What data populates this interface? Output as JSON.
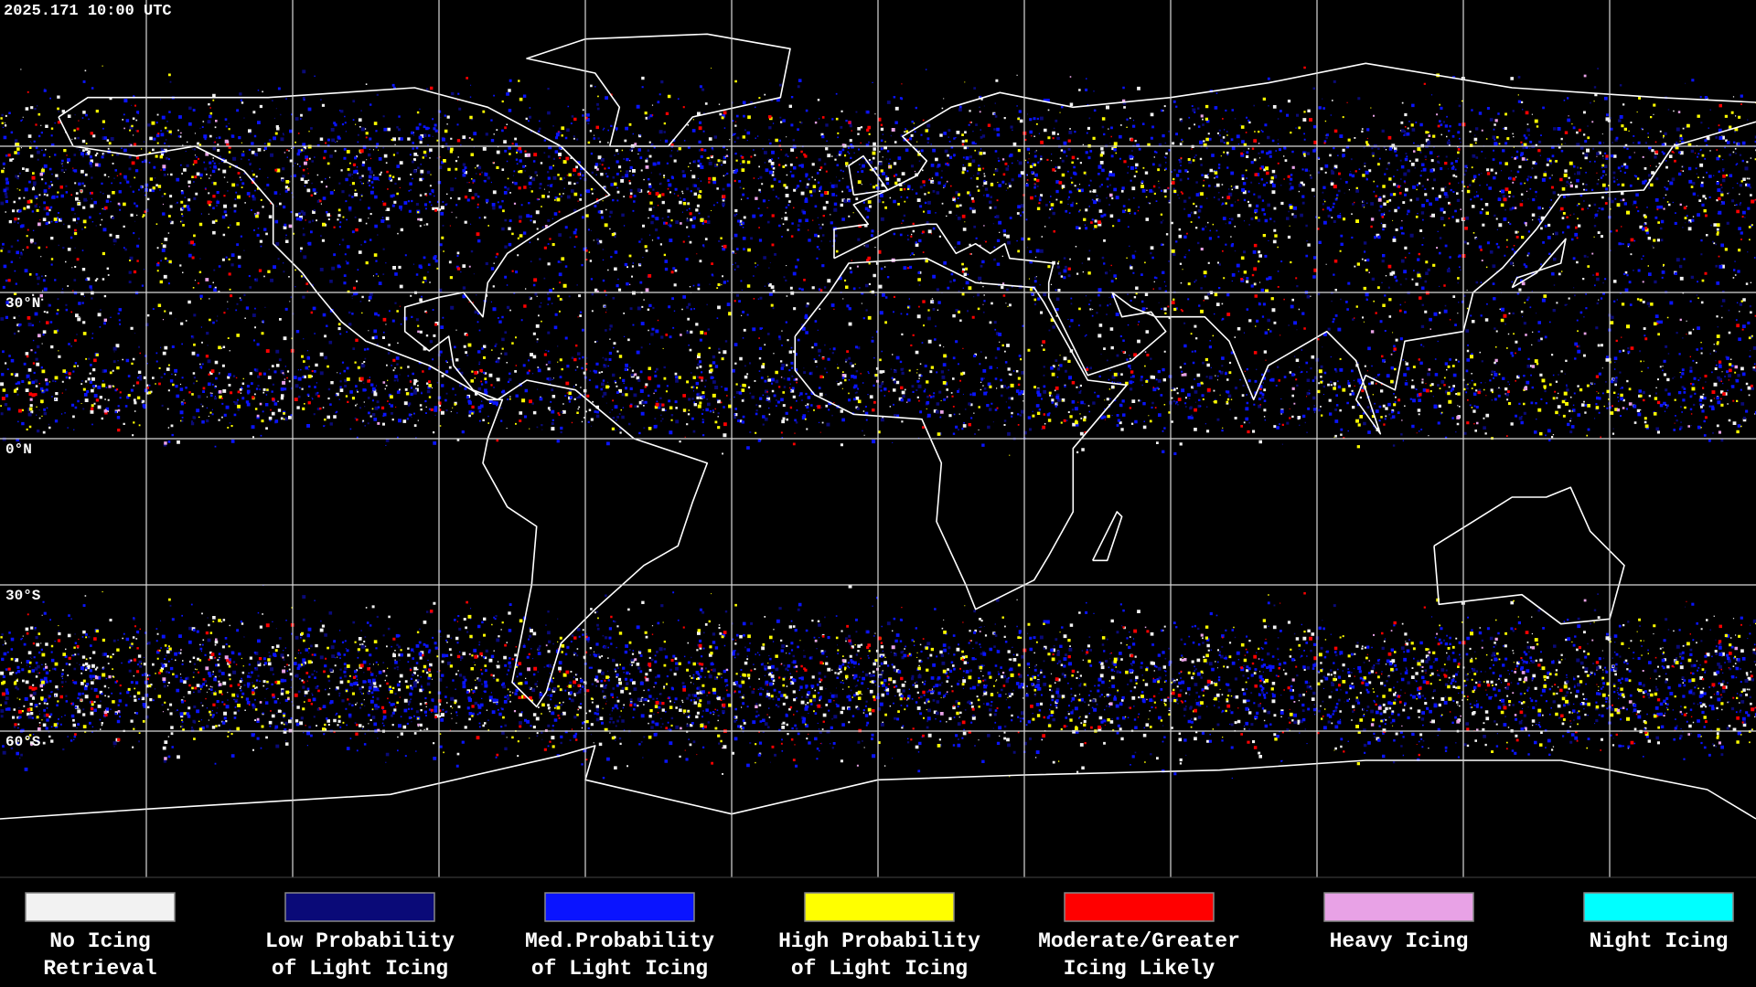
{
  "header": {
    "timestamp": "2025.171 10:00 UTC"
  },
  "map": {
    "lat_labels": [
      {
        "text": "30°N",
        "lat": 30
      },
      {
        "text": "0°N",
        "lat": 0
      },
      {
        "text": "30°S",
        "lat": -30
      },
      {
        "text": "60°S",
        "lat": -60
      }
    ]
  },
  "legend": {
    "items": [
      {
        "lines": [
          "No Icing",
          "Retrieval"
        ],
        "color": "#f2f2f2"
      },
      {
        "lines": [
          "Low Probability",
          "of Light Icing"
        ],
        "color": "#0a0a78"
      },
      {
        "lines": [
          "Med.Probability",
          "of Light Icing"
        ],
        "color": "#0a14ff"
      },
      {
        "lines": [
          "High Probability",
          "of Light Icing"
        ],
        "color": "#ffff00"
      },
      {
        "lines": [
          "Moderate/Greater",
          "Icing Likely"
        ],
        "color": "#ff0000"
      },
      {
        "lines": [
          "Heavy Icing"
        ],
        "color": "#e8a2e6"
      },
      {
        "lines": [
          "Night Icing"
        ],
        "color": "#00ffff"
      }
    ]
  }
}
